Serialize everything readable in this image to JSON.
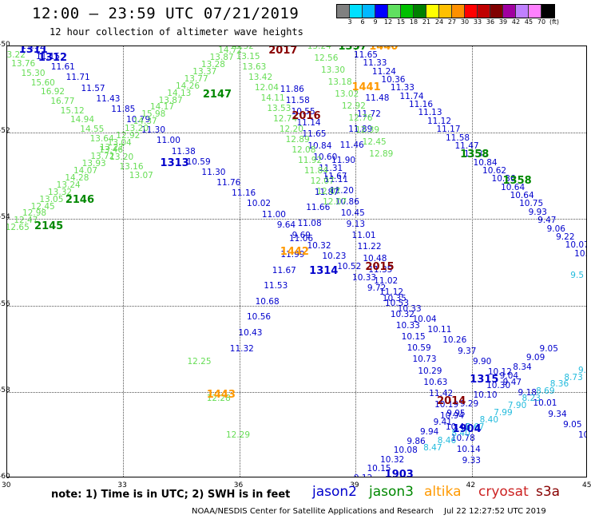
{
  "title": "12:00 – 23:59 UTC 07/21/2019",
  "subtitle": "12 hour collection of altimeter wave heights",
  "colorbar": {
    "labels": [
      "3",
      "6",
      "9",
      "12",
      "15",
      "18",
      "21",
      "24",
      "27",
      "30",
      "33",
      "36",
      "39",
      "42",
      "45",
      "70",
      "(ft)"
    ],
    "colors": [
      "#808080",
      "#00e0ff",
      "#00b8ff",
      "#0000ff",
      "#60e060",
      "#00c000",
      "#008000",
      "#ffff00",
      "#ffc000",
      "#ff9000",
      "#ff0000",
      "#c00000",
      "#800000",
      "#a000a0",
      "#c080ff",
      "#ff80ff",
      "#000000"
    ]
  },
  "colors": {
    "jason2": "#0000cc",
    "jason3": "#008800",
    "jason3_obs": "#66dd55",
    "altika": "#ff9900",
    "cryosat": "#880000",
    "s3a": "#22bbdd",
    "s3a_label": "#cc2222"
  },
  "map": {
    "lon_ticks": [
      "30",
      "33",
      "36",
      "39",
      "42",
      "45"
    ],
    "lat_ticks": [
      "-50",
      "-52",
      "-54",
      "-56",
      "-58",
      "-60"
    ]
  },
  "passes": [
    {
      "label": "1311",
      "sat": "jason2",
      "lon": 30.55,
      "lat": -50.08
    },
    {
      "label": "1312",
      "sat": "jason2",
      "lon": 31.05,
      "lat": -50.25
    },
    {
      "label": "1313",
      "sat": "jason2",
      "lon": 34.2,
      "lat": -52.7
    },
    {
      "label": "1314",
      "sat": "jason2",
      "lon": 38.05,
      "lat": -55.2
    },
    {
      "label": "1315",
      "sat": "jason2",
      "lon": 42.2,
      "lat": -57.7
    },
    {
      "label": "1903",
      "sat": "jason2",
      "lon": 40.0,
      "lat": -59.9
    },
    {
      "label": "1904",
      "sat": "jason2",
      "lon": 41.75,
      "lat": -58.85
    },
    {
      "label": "2145",
      "sat": "jason3",
      "lon": 30.95,
      "lat": -54.15
    },
    {
      "label": "2146",
      "sat": "jason3",
      "lon": 31.75,
      "lat": -53.55
    },
    {
      "label": "2147",
      "sat": "jason3",
      "lon": 35.3,
      "lat": -51.1
    },
    {
      "label": "1357",
      "sat": "jason3",
      "lon": 38.8,
      "lat": -50.0
    },
    {
      "label": "1358",
      "sat": "jason3",
      "lon": 41.95,
      "lat": -52.5
    },
    {
      "label": "1358",
      "sat": "jason3",
      "lon": 43.05,
      "lat": -53.1
    },
    {
      "label": "1440",
      "sat": "altika",
      "lon": 39.6,
      "lat": -50.0
    },
    {
      "label": "1441",
      "sat": "altika",
      "lon": 39.15,
      "lat": -50.95
    },
    {
      "label": "1442",
      "sat": "altika",
      "lon": 37.3,
      "lat": -54.75
    },
    {
      "label": "1443",
      "sat": "altika",
      "lon": 35.4,
      "lat": -58.05
    },
    {
      "label": "2017",
      "sat": "cryosat",
      "lon": 37.0,
      "lat": -50.1
    },
    {
      "label": "2016",
      "sat": "cryosat",
      "lon": 37.6,
      "lat": -51.6
    },
    {
      "label": "2015",
      "sat": "cryosat",
      "lon": 39.5,
      "lat": -55.1
    },
    {
      "label": "2014",
      "sat": "cryosat",
      "lon": 41.35,
      "lat": -58.2
    }
  ],
  "tracks": [
    {
      "sat": "jason2",
      "lon0": 30.6,
      "lat0": -50.0,
      "lon1": 45.0,
      "lat1": -59.0,
      "values": [
        "11.52",
        "11.15",
        "11.61",
        "11.71",
        "11.57",
        "11.43",
        "11.85",
        "10.79",
        "11.30",
        "11.00",
        "11.38",
        "10.59",
        "11.30",
        "11.76",
        "11.16",
        "10.02",
        "11.00",
        "9.64",
        "9.69",
        "10.32",
        "10.23",
        "10.52",
        "10.33",
        "9.72",
        "10.35",
        "10.33",
        "10.04",
        "10.11",
        "10.26",
        "9.37",
        "9.90",
        "10.12",
        "9.47",
        "9.18",
        "10.01",
        "9.34",
        "9.05",
        "10.3"
      ]
    },
    {
      "sat": "jason2",
      "lon0": 36.0,
      "lat0": -57.0,
      "lon1": 39.5,
      "lat1": -51.2,
      "values": [
        "11.32",
        "10.43",
        "10.56",
        "10.68",
        "11.53",
        "11.67",
        "11.99",
        "11.06",
        "11.08",
        "11.66",
        "11.87",
        "11.67",
        "11.90",
        "11.46",
        "11.89",
        "11.72",
        "11.48"
      ]
    },
    {
      "sat": "jason2",
      "lon0": 37.3,
      "lat0": -51.0,
      "lon1": 42.0,
      "lat1": -59.6,
      "values": [
        "11.86",
        "11.58",
        "10.55",
        "11.14",
        "11.65",
        "10.84",
        "10.60",
        "11.31",
        "11.11",
        "11.20",
        "10.86",
        "10.45",
        "9.13",
        "11.01",
        "11.22",
        "10.48",
        "11.35",
        "11.02",
        "11.12",
        "10.53",
        "10.32",
        "10.33",
        "10.15",
        "10.59",
        "10.73",
        "10.29",
        "10.63",
        "11.42",
        "10.19",
        "10.94",
        "10.46",
        "10.78",
        "10.14",
        "9.33"
      ]
    },
    {
      "sat": "jason2",
      "lon0": 39.2,
      "lat0": -50.2,
      "lon1": 44.9,
      "lat1": -54.8,
      "values": [
        "11.65",
        "11.33",
        "11.24",
        "10.36",
        "11.33",
        "11.74",
        "11.16",
        "11.13",
        "11.12",
        "11.17",
        "11.58",
        "11.47",
        "11.35",
        "10.84",
        "10.62",
        "10.36",
        "10.64",
        "10.64",
        "10.75",
        "9.93",
        "9.47",
        "9.06",
        "9.22",
        "10.07",
        "10.30"
      ]
    },
    {
      "sat": "jason2",
      "lon0": 39.2,
      "lat0": -60.0,
      "lon1": 44.0,
      "lat1": -57.0,
      "values": [
        "9.12",
        "10.15",
        "10.32",
        "10.08",
        "9.86",
        "9.94",
        "9.41",
        "9.95",
        "9.29",
        "10.10",
        "10.30",
        "9.04",
        "8.34",
        "9.09",
        "9.05"
      ]
    },
    {
      "sat": "jason3",
      "lon0": 30.1,
      "lat0": -50.2,
      "lon1": 33.4,
      "lat1": -53.0,
      "values": [
        "13.22",
        "13.76",
        "15.30",
        "15.60",
        "16.92",
        "16.77",
        "15.12",
        "14.94",
        "14.55",
        "13.64",
        "13.27",
        "13.20",
        "13.16",
        "13.07"
      ]
    },
    {
      "sat": "jason3",
      "lon0": 30.2,
      "lat0": -54.2,
      "lon1": 35.7,
      "lat1": -50.1,
      "values": [
        "12.65",
        "12.47",
        "12.98",
        "12.45",
        "13.05",
        "13.32",
        "13.24",
        "14.28",
        "14.07",
        "13.93",
        "13.72",
        "13.46",
        "13.04",
        "12.92",
        "13.20",
        "14.37",
        "15.98",
        "14.17",
        "13.87",
        "14.13",
        "14.26",
        "13.77",
        "13.37",
        "13.28",
        "13.87",
        "14.72"
      ]
    },
    {
      "sat": "jason3",
      "lon0": 36.0,
      "lat0": -50.0,
      "lon1": 38.4,
      "lat1": -53.6,
      "values": [
        "13.32",
        "13.15",
        "13.63",
        "13.42",
        "12.04",
        "14.11",
        "13.53",
        "12.74",
        "12.20",
        "12.89",
        "12.08",
        "11.92",
        "11.84",
        "12.07",
        "12.07",
        "12.07"
      ]
    },
    {
      "sat": "jason3",
      "lon0": 35.9,
      "lat0": -59.0,
      "lon1": 34.9,
      "lat1": -57.3,
      "values": [
        "12.29",
        "12.28",
        "12.25"
      ]
    },
    {
      "sat": "jason3",
      "lon0": 38.0,
      "lat0": -50.0,
      "lon1": 39.6,
      "lat1": -52.5,
      "values": [
        "13.24",
        "12.56",
        "13.30",
        "13.18",
        "13.02",
        "12.92",
        "12.76",
        "12.39",
        "12.45",
        "12.89"
      ]
    },
    {
      "sat": "s3a",
      "lon0": 41.0,
      "lat0": -59.3,
      "lon1": 45.0,
      "lat1": -57.5,
      "values": [
        "8.47",
        "8.46",
        "8.40",
        "8.67",
        "8.40",
        "7.99",
        "7.90",
        "8.23",
        "8.69",
        "8.36",
        "8.73",
        "9.5"
      ]
    },
    {
      "sat": "s3a",
      "lon0": 44.8,
      "lat0": -55.3,
      "lon1": 44.8,
      "lat1": -55.3,
      "values": [
        "9.5"
      ]
    }
  ],
  "note": "note:  1) Time is in UTC;  2) SWH is in feet",
  "legend": [
    {
      "label": "jason2",
      "key": "jason2"
    },
    {
      "label": "jason3",
      "key": "jason3"
    },
    {
      "label": "altika",
      "key": "altika"
    },
    {
      "label": "cryosat",
      "key": "s3a_label"
    },
    {
      "label": "s3a",
      "key": "cryosat"
    }
  ],
  "credit": "NOAA/NESDIS Center for Satellite Applications and Research",
  "timestamp": "Jul 22 12:27:52 UTC 2019"
}
